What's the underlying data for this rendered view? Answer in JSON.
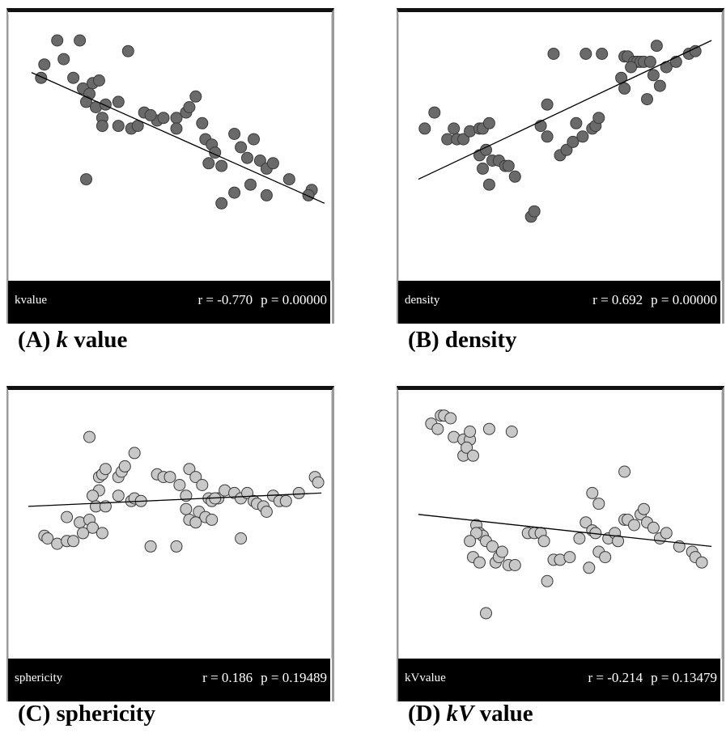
{
  "chart_data": [
    {
      "type": "scatter",
      "id": "A",
      "variable": "kvalue",
      "stats": {
        "r": "r = -0.770",
        "p": "p = 0.00000"
      },
      "caption": {
        "prefix": "(A) ",
        "italic": "k",
        "suffix": " value"
      },
      "point_color": "#6a6a6a",
      "point_stroke": "#3a3a3a",
      "xlim": [
        0,
        100
      ],
      "ylim": [
        0,
        100
      ],
      "fit": [
        [
          7,
          78
        ],
        [
          98,
          29
        ]
      ],
      "points": [
        [
          15,
          90
        ],
        [
          22,
          90
        ],
        [
          17,
          83
        ],
        [
          11,
          81
        ],
        [
          10,
          76
        ],
        [
          20,
          76
        ],
        [
          26,
          74
        ],
        [
          23,
          72
        ],
        [
          28,
          75
        ],
        [
          37,
          86
        ],
        [
          25,
          70
        ],
        [
          24,
          67
        ],
        [
          27,
          65
        ],
        [
          30,
          66
        ],
        [
          29,
          61
        ],
        [
          34,
          67
        ],
        [
          42,
          63
        ],
        [
          29,
          58
        ],
        [
          34,
          58
        ],
        [
          38,
          57
        ],
        [
          40,
          58
        ],
        [
          46,
          60
        ],
        [
          44,
          62
        ],
        [
          48,
          61
        ],
        [
          52,
          61
        ],
        [
          55,
          63
        ],
        [
          58,
          69
        ],
        [
          56,
          65
        ],
        [
          52,
          57
        ],
        [
          60,
          59
        ],
        [
          61,
          53
        ],
        [
          63,
          51
        ],
        [
          64,
          48
        ],
        [
          62,
          44
        ],
        [
          66,
          43
        ],
        [
          70,
          55
        ],
        [
          72,
          50
        ],
        [
          74,
          46
        ],
        [
          76,
          53
        ],
        [
          78,
          45
        ],
        [
          80,
          42
        ],
        [
          82,
          44
        ],
        [
          75,
          36
        ],
        [
          80,
          32
        ],
        [
          70,
          33
        ],
        [
          66,
          29
        ],
        [
          87,
          38
        ],
        [
          94,
          34
        ],
        [
          93,
          32
        ],
        [
          24,
          38
        ]
      ]
    },
    {
      "type": "scatter",
      "id": "B",
      "variable": "density",
      "stats": {
        "r": "r = 0.692",
        "p": "p = 0.00000"
      },
      "caption": {
        "prefix": "(B) ",
        "italic": "",
        "suffix": "density"
      },
      "point_color": "#6a6a6a",
      "point_stroke": "#3a3a3a",
      "xlim": [
        0,
        100
      ],
      "ylim": [
        0,
        100
      ],
      "fit": [
        [
          6,
          38
        ],
        [
          97,
          90
        ]
      ],
      "points": [
        [
          11,
          63
        ],
        [
          8,
          57
        ],
        [
          15,
          53
        ],
        [
          17,
          57
        ],
        [
          18,
          53
        ],
        [
          20,
          53
        ],
        [
          22,
          56
        ],
        [
          25,
          57
        ],
        [
          26,
          57
        ],
        [
          28,
          59
        ],
        [
          25,
          47
        ],
        [
          27,
          49
        ],
        [
          29,
          45
        ],
        [
          26,
          42
        ],
        [
          31,
          45
        ],
        [
          28,
          36
        ],
        [
          33,
          43
        ],
        [
          34,
          43
        ],
        [
          36,
          39
        ],
        [
          41,
          24
        ],
        [
          42,
          26
        ],
        [
          44,
          58
        ],
        [
          46,
          54
        ],
        [
          48,
          85
        ],
        [
          58,
          85
        ],
        [
          46,
          66
        ],
        [
          50,
          47
        ],
        [
          52,
          49
        ],
        [
          54,
          52
        ],
        [
          55,
          59
        ],
        [
          57,
          54
        ],
        [
          60,
          57
        ],
        [
          61,
          58
        ],
        [
          62,
          61
        ],
        [
          70,
          84
        ],
        [
          71,
          84
        ],
        [
          73,
          82
        ],
        [
          74,
          82
        ],
        [
          75,
          82
        ],
        [
          76,
          82
        ],
        [
          78,
          82
        ],
        [
          69,
          76
        ],
        [
          70,
          72
        ],
        [
          79,
          77
        ],
        [
          83,
          80
        ],
        [
          86,
          82
        ],
        [
          90,
          85
        ],
        [
          92,
          86
        ],
        [
          80,
          88
        ],
        [
          77,
          68
        ],
        [
          81,
          73
        ],
        [
          63,
          85
        ],
        [
          72,
          80
        ]
      ]
    },
    {
      "type": "scatter",
      "id": "C",
      "variable": "sphericity",
      "stats": {
        "r": "r = 0.186",
        "p": "p = 0.19489"
      },
      "caption": {
        "prefix": "(C) ",
        "italic": "",
        "suffix": "sphericity"
      },
      "point_color": "#c8c8c8",
      "point_stroke": "#3a3a3a",
      "xlim": [
        0,
        100
      ],
      "ylim": [
        0,
        100
      ],
      "fit": [
        [
          6,
          57
        ],
        [
          97,
          62
        ]
      ],
      "points": [
        [
          25,
          83
        ],
        [
          39,
          77
        ],
        [
          28,
          68
        ],
        [
          29,
          69
        ],
        [
          30,
          71
        ],
        [
          34,
          68
        ],
        [
          35,
          70
        ],
        [
          36,
          72
        ],
        [
          28,
          63
        ],
        [
          26,
          61
        ],
        [
          27,
          57
        ],
        [
          30,
          57
        ],
        [
          34,
          61
        ],
        [
          38,
          59
        ],
        [
          39,
          60
        ],
        [
          41,
          59
        ],
        [
          46,
          69
        ],
        [
          48,
          68
        ],
        [
          50,
          68
        ],
        [
          53,
          65
        ],
        [
          55,
          61
        ],
        [
          56,
          71
        ],
        [
          58,
          68
        ],
        [
          60,
          65
        ],
        [
          62,
          60
        ],
        [
          63,
          59
        ],
        [
          65,
          60
        ],
        [
          67,
          63
        ],
        [
          70,
          62
        ],
        [
          72,
          60
        ],
        [
          74,
          62
        ],
        [
          76,
          59
        ],
        [
          77,
          58
        ],
        [
          79,
          57
        ],
        [
          80,
          55
        ],
        [
          82,
          61
        ],
        [
          84,
          59
        ],
        [
          86,
          59
        ],
        [
          90,
          62
        ],
        [
          95,
          68
        ],
        [
          96,
          66
        ],
        [
          55,
          56
        ],
        [
          59,
          55
        ],
        [
          61,
          53
        ],
        [
          63,
          52
        ],
        [
          56,
          52
        ],
        [
          58,
          51
        ],
        [
          22,
          51
        ],
        [
          25,
          52
        ],
        [
          26,
          49
        ],
        [
          29,
          47
        ],
        [
          11,
          46
        ],
        [
          12,
          45
        ],
        [
          15,
          43
        ],
        [
          18,
          44
        ],
        [
          20,
          44
        ],
        [
          23,
          47
        ],
        [
          44,
          42
        ],
        [
          52,
          42
        ],
        [
          72,
          45
        ],
        [
          18,
          53
        ],
        [
          64,
          60
        ]
      ]
    },
    {
      "type": "scatter",
      "id": "D",
      "variable": "kVvalue",
      "stats": {
        "r": "r = -0.214",
        "p": "p = 0.13479"
      },
      "caption": {
        "prefix": "(D) ",
        "italic": "kV",
        "suffix": " value"
      },
      "point_color": "#c8c8c8",
      "point_stroke": "#3a3a3a",
      "xlim": [
        0,
        100
      ],
      "ylim": [
        0,
        100
      ],
      "fit": [
        [
          6,
          54
        ],
        [
          97,
          42
        ]
      ],
      "points": [
        [
          10,
          88
        ],
        [
          12,
          86
        ],
        [
          13,
          91
        ],
        [
          14,
          91
        ],
        [
          16,
          90
        ],
        [
          17,
          83
        ],
        [
          20,
          82
        ],
        [
          22,
          82
        ],
        [
          20,
          76
        ],
        [
          21,
          79
        ],
        [
          22,
          85
        ],
        [
          23,
          76
        ],
        [
          28,
          86
        ],
        [
          35,
          85
        ],
        [
          24,
          50
        ],
        [
          25,
          47
        ],
        [
          26,
          46
        ],
        [
          27,
          44
        ],
        [
          29,
          42
        ],
        [
          30,
          36
        ],
        [
          31,
          38
        ],
        [
          34,
          35
        ],
        [
          36,
          35
        ],
        [
          24,
          47
        ],
        [
          22,
          44
        ],
        [
          23,
          38
        ],
        [
          25,
          36
        ],
        [
          32,
          40
        ],
        [
          40,
          47
        ],
        [
          42,
          47
        ],
        [
          44,
          47
        ],
        [
          45,
          44
        ],
        [
          48,
          37
        ],
        [
          50,
          37
        ],
        [
          53,
          38
        ],
        [
          56,
          45
        ],
        [
          58,
          51
        ],
        [
          60,
          48
        ],
        [
          61,
          47
        ],
        [
          62,
          40
        ],
        [
          64,
          38
        ],
        [
          65,
          45
        ],
        [
          67,
          47
        ],
        [
          68,
          44
        ],
        [
          70,
          52
        ],
        [
          71,
          52
        ],
        [
          73,
          50
        ],
        [
          75,
          54
        ],
        [
          76,
          56
        ],
        [
          77,
          51
        ],
        [
          79,
          49
        ],
        [
          81,
          45
        ],
        [
          83,
          47
        ],
        [
          87,
          42
        ],
        [
          91,
          40
        ],
        [
          92,
          38
        ],
        [
          46,
          29
        ],
        [
          27,
          17
        ],
        [
          60,
          62
        ],
        [
          62,
          58
        ],
        [
          59,
          34
        ],
        [
          70,
          70
        ],
        [
          94,
          36
        ]
      ]
    }
  ]
}
